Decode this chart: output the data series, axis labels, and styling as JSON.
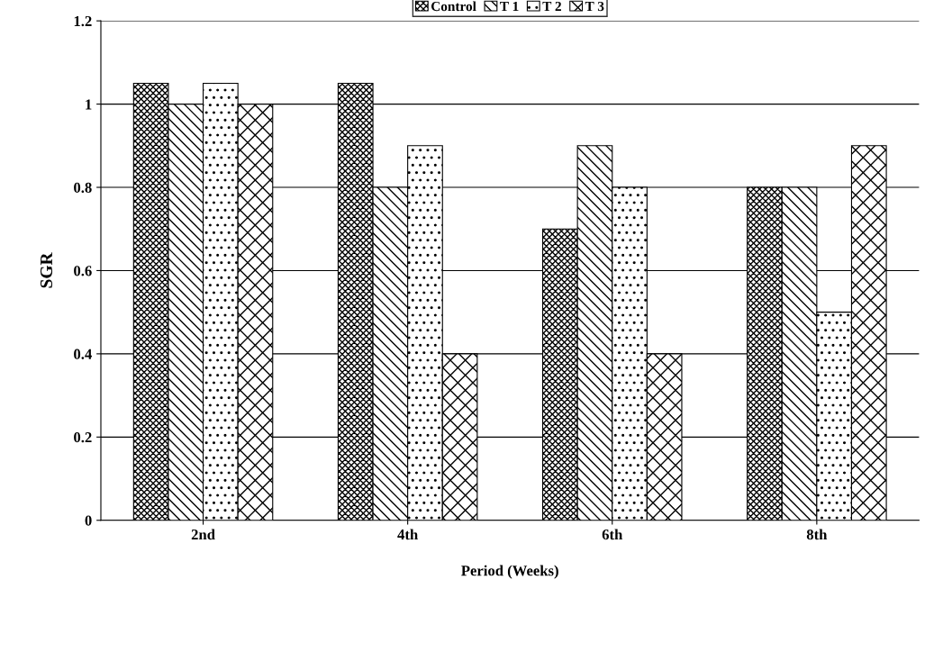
{
  "chart_data": {
    "type": "bar",
    "xlabel": "Period (Weeks)",
    "ylabel": "SGR",
    "categories": [
      "2nd",
      "4th",
      "6th",
      "8th"
    ],
    "series": [
      {
        "name": "Control",
        "color": "#000000",
        "values": [
          1.05,
          1.05,
          0.7,
          0.8
        ]
      },
      {
        "name": "T 1",
        "color": "#000000",
        "values": [
          1.0,
          0.8,
          0.9,
          0.8
        ]
      },
      {
        "name": "T 2",
        "color": "#000000",
        "values": [
          1.05,
          0.9,
          0.8,
          0.5
        ]
      },
      {
        "name": "T 3",
        "color": "#000000",
        "values": [
          1.0,
          0.4,
          0.4,
          0.9
        ]
      }
    ],
    "ylim": [
      0,
      1.2
    ],
    "yticks": [
      0,
      0.2,
      0.4,
      0.6,
      0.8,
      1,
      1.2
    ],
    "grid": "y",
    "legend": "top"
  }
}
